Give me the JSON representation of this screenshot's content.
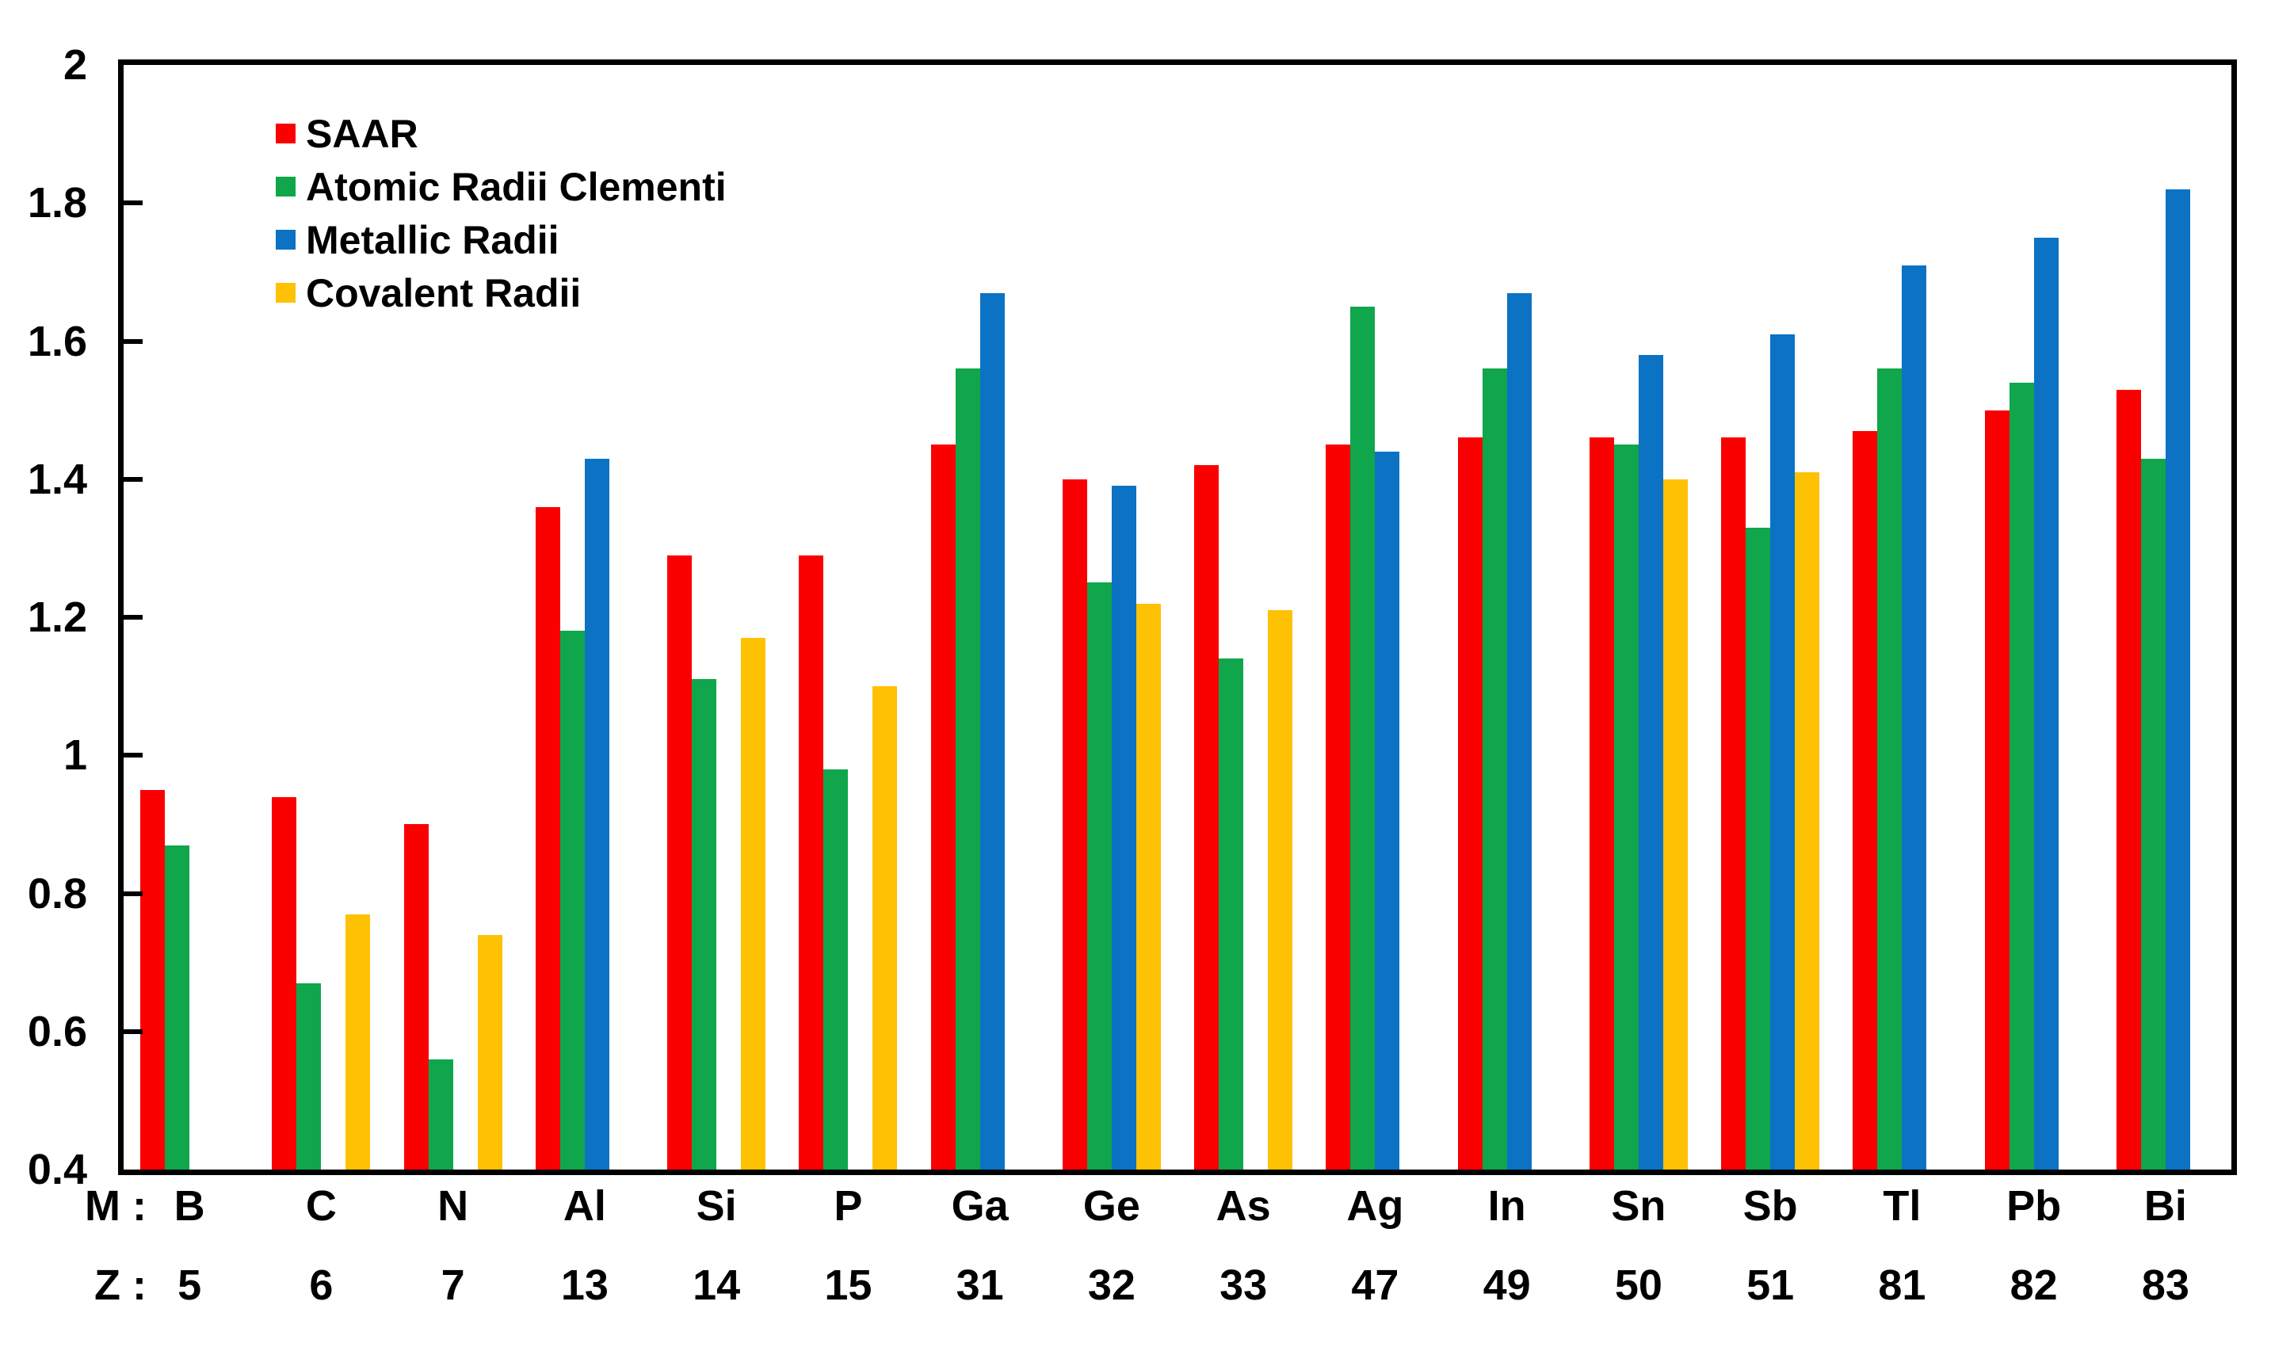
{
  "chart_data": {
    "type": "bar",
    "title": "",
    "xlabel": "",
    "ylabel": "",
    "ylim": [
      0.4,
      2.0
    ],
    "grid": false,
    "legend_position": "top-left-inside",
    "y_ticks": [
      {
        "label": "2",
        "value": 2.0
      },
      {
        "label": "1.8",
        "value": 1.8
      },
      {
        "label": "1.6",
        "value": 1.6
      },
      {
        "label": "1.4",
        "value": 1.4
      },
      {
        "label": "1.2",
        "value": 1.2
      },
      {
        "label": "1",
        "value": 1.0
      },
      {
        "label": "0.8",
        "value": 0.8
      },
      {
        "label": "0.6",
        "value": 0.6
      },
      {
        "label": "0.4",
        "value": 0.4
      }
    ],
    "x_axis": {
      "symbol_row_prefix": "M :",
      "number_row_prefix": "Z :",
      "categories": [
        "B",
        "C",
        "N",
        "Al",
        "Si",
        "P",
        "Ga",
        "Ge",
        "As",
        "Ag",
        "In",
        "Sn",
        "Sb",
        "Tl",
        "Pb",
        "Bi"
      ],
      "atomic_numbers": [
        "5",
        "6",
        "7",
        "13",
        "14",
        "15",
        "31",
        "32",
        "33",
        "47",
        "49",
        "50",
        "51",
        "81",
        "82",
        "83"
      ]
    },
    "series": [
      {
        "name": "SAAR",
        "key": "saar",
        "color": "#FB0000",
        "values": [
          0.95,
          0.94,
          0.9,
          1.36,
          1.29,
          1.29,
          1.45,
          1.4,
          1.42,
          1.45,
          1.46,
          1.46,
          1.46,
          1.47,
          1.5,
          1.53
        ]
      },
      {
        "name": "Atomic Radii Clementi",
        "key": "atomic-radii-clementi",
        "color": "#0FA64C",
        "values": [
          0.87,
          0.67,
          0.56,
          1.18,
          1.11,
          0.98,
          1.56,
          1.25,
          1.14,
          1.65,
          1.56,
          1.45,
          1.33,
          1.56,
          1.54,
          1.43
        ]
      },
      {
        "name": "Metallic Radii",
        "key": "metallic-radii",
        "color": "#0B72C4",
        "values": [
          null,
          null,
          null,
          1.43,
          null,
          null,
          1.67,
          1.39,
          null,
          1.44,
          1.67,
          1.58,
          1.61,
          1.71,
          1.75,
          1.82
        ]
      },
      {
        "name": "Covalent Radii",
        "key": "covalent-radii",
        "color": "#FFC103",
        "values": [
          null,
          0.77,
          0.74,
          null,
          1.17,
          1.1,
          null,
          1.22,
          1.21,
          null,
          null,
          1.4,
          1.41,
          null,
          null,
          null
        ]
      }
    ]
  },
  "colors": {
    "axis": "#000000",
    "background": "#ffffff",
    "text": "#000000"
  }
}
